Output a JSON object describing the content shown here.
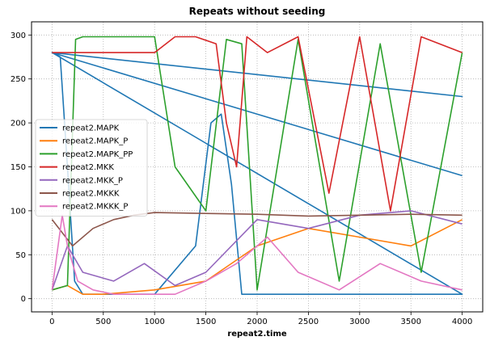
{
  "chart_data": {
    "type": "line",
    "title": "Repeats without seeding",
    "xlabel": "repeat2.time",
    "ylabel": "",
    "xlim": [
      -200,
      4200
    ],
    "ylim": [
      -15,
      315
    ],
    "xticks": [
      0,
      500,
      1000,
      1500,
      2000,
      2500,
      3000,
      3500,
      4000
    ],
    "yticks": [
      0,
      50,
      100,
      150,
      200,
      250,
      300
    ],
    "grid": true,
    "legend_position": "center-left",
    "series": [
      {
        "name": "repeat2.MAPK",
        "color": "#1f77b4",
        "x": [
          0,
          80,
          150,
          220,
          300,
          1000,
          1400,
          1550,
          1650,
          1750,
          1850,
          2000,
          4000,
          0,
          4000,
          0,
          4000
        ],
        "y": [
          280,
          275,
          150,
          20,
          5,
          5,
          60,
          200,
          210,
          130,
          5,
          5,
          5,
          280,
          230,
          280,
          140
        ]
      },
      {
        "name": "repeat2.MAPK_P",
        "color": "#ff7f0e",
        "x": [
          0,
          150,
          300,
          500,
          1000,
          1500,
          2000,
          2500,
          3000,
          3500,
          4000
        ],
        "y": [
          10,
          15,
          5,
          5,
          10,
          20,
          60,
          80,
          70,
          60,
          90
        ]
      },
      {
        "name": "repeat2.MAPK_PP",
        "color": "#2ca02c",
        "x": [
          0,
          150,
          230,
          300,
          1000,
          1200,
          1500,
          1700,
          1850,
          2000,
          2400,
          2800,
          3200,
          3600,
          4000
        ],
        "y": [
          10,
          15,
          295,
          298,
          298,
          150,
          100,
          295,
          290,
          10,
          295,
          20,
          290,
          30,
          280
        ]
      },
      {
        "name": "repeat2.MKK",
        "color": "#d62728",
        "x": [
          0,
          500,
          1000,
          1200,
          1400,
          1600,
          1700,
          1800,
          1900,
          2100,
          2400,
          2700,
          3000,
          3300,
          3600,
          4000
        ],
        "y": [
          280,
          280,
          280,
          298,
          298,
          290,
          200,
          150,
          298,
          280,
          298,
          120,
          298,
          100,
          298,
          280
        ]
      },
      {
        "name": "repeat2.MKK_P",
        "color": "#9467bd",
        "x": [
          0,
          150,
          300,
          600,
          900,
          1200,
          1500,
          2000,
          2500,
          3000,
          3500,
          4000
        ],
        "y": [
          10,
          60,
          30,
          20,
          40,
          15,
          30,
          90,
          80,
          95,
          100,
          85
        ]
      },
      {
        "name": "repeat2.MKKK",
        "color": "#8c564b",
        "x": [
          0,
          200,
          400,
          600,
          800,
          1000,
          1500,
          2000,
          2500,
          3000,
          3500,
          4000
        ],
        "y": [
          90,
          60,
          80,
          90,
          95,
          98,
          97,
          96,
          94,
          95,
          96,
          95
        ]
      },
      {
        "name": "repeat2.MKKK_P",
        "color": "#e377c2",
        "x": [
          0,
          100,
          150,
          250,
          400,
          600,
          900,
          1200,
          1500,
          1800,
          2100,
          2400,
          2800,
          3200,
          3600,
          4000
        ],
        "y": [
          10,
          95,
          60,
          20,
          10,
          5,
          5,
          5,
          20,
          40,
          70,
          30,
          10,
          40,
          20,
          10
        ]
      }
    ]
  }
}
